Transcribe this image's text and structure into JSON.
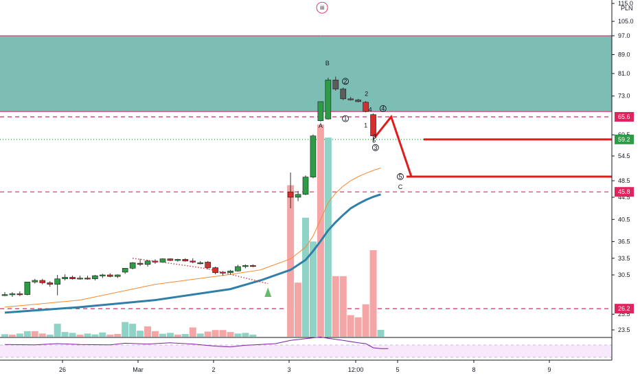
{
  "chart_data": {
    "type": "candlestick",
    "currency": "PLN",
    "y_ticks": [
      23.5,
      25.5,
      26.2,
      30.5,
      33.5,
      36.5,
      40.5,
      44.5,
      48.5,
      54.5,
      60.5,
      65.6,
      73.0,
      81.0,
      89.0,
      97.0,
      105.0,
      115.0
    ],
    "y_tick_labels": [
      "23.5",
      "25.5",
      "",
      "30.5",
      "33.5",
      "36.5",
      "40.5",
      "44.5",
      "48.5",
      "54.5",
      "60.5",
      "",
      "73.0",
      "81.0",
      "89.0",
      "97.0",
      "105.0",
      "115.0"
    ],
    "x_labels": [
      "26",
      "Mar",
      "2",
      "3",
      "12:00",
      "5",
      "8",
      "9"
    ],
    "zone": {
      "from": 67.5,
      "to": 97.0,
      "color": "#7cbdb4"
    },
    "levels": [
      {
        "value": 65.6,
        "label": "65.6",
        "color": "#e0245e",
        "style": "dashed"
      },
      {
        "value": 45.8,
        "label": "45.8",
        "color": "#e0245e",
        "style": "dashed"
      },
      {
        "value": 26.2,
        "label": "26.2",
        "color": "#e0245e",
        "style": "dashed"
      },
      {
        "value": 59.2,
        "label": "59.2",
        "color": "#2e9c46",
        "style": "dotted"
      }
    ],
    "projection_levels": [
      59.2,
      49.5
    ],
    "projection_path": [
      [
        44.9,
        65.6
      ],
      [
        45.3,
        49.5
      ]
    ],
    "candles": [
      {
        "t": 0,
        "o": 28.0,
        "h": 28.3,
        "l": 27.8,
        "c": 28.0
      },
      {
        "t": 1,
        "o": 28.0,
        "h": 28.3,
        "l": 27.7,
        "c": 28.1
      },
      {
        "t": 2,
        "o": 28.1,
        "h": 28.4,
        "l": 27.8,
        "c": 28.0
      },
      {
        "t": 3,
        "o": 28.0,
        "h": 29.6,
        "l": 27.9,
        "c": 29.6
      },
      {
        "t": 4,
        "o": 29.6,
        "h": 30.0,
        "l": 29.4,
        "c": 29.8
      },
      {
        "t": 5,
        "o": 29.8,
        "h": 30.0,
        "l": 29.3,
        "c": 29.5
      },
      {
        "t": 6,
        "o": 29.5,
        "h": 29.7,
        "l": 29.0,
        "c": 29.3
      },
      {
        "t": 7,
        "o": 29.3,
        "h": 30.5,
        "l": 27.9,
        "c": 30.0
      },
      {
        "t": 8,
        "o": 30.0,
        "h": 30.6,
        "l": 29.8,
        "c": 30.2
      },
      {
        "t": 9,
        "o": 30.2,
        "h": 30.4,
        "l": 29.9,
        "c": 30.0
      },
      {
        "t": 10,
        "o": 30.0,
        "h": 30.4,
        "l": 29.9,
        "c": 30.1
      },
      {
        "t": 11,
        "o": 30.1,
        "h": 30.4,
        "l": 29.9,
        "c": 30.0
      },
      {
        "t": 12,
        "o": 30.0,
        "h": 30.5,
        "l": 29.8,
        "c": 30.4
      },
      {
        "t": 13,
        "o": 30.4,
        "h": 30.7,
        "l": 30.1,
        "c": 30.5
      },
      {
        "t": 14,
        "o": 30.5,
        "h": 30.8,
        "l": 30.2,
        "c": 30.3
      },
      {
        "t": 15,
        "o": 30.3,
        "h": 30.6,
        "l": 30.1,
        "c": 30.5
      },
      {
        "t": 16,
        "o": 31.0,
        "h": 31.2,
        "l": 30.7,
        "c": 31.7
      },
      {
        "t": 17,
        "o": 31.7,
        "h": 32.8,
        "l": 31.5,
        "c": 32.7
      },
      {
        "t": 18,
        "o": 32.6,
        "h": 33.4,
        "l": 32.1,
        "c": 32.4
      },
      {
        "t": 19,
        "o": 32.4,
        "h": 33.2,
        "l": 32.0,
        "c": 33.0
      },
      {
        "t": 20,
        "o": 33.0,
        "h": 33.3,
        "l": 32.5,
        "c": 32.8
      },
      {
        "t": 21,
        "o": 32.8,
        "h": 33.5,
        "l": 32.7,
        "c": 33.4
      },
      {
        "t": 22,
        "o": 33.4,
        "h": 33.5,
        "l": 33.0,
        "c": 33.1
      },
      {
        "t": 23,
        "o": 33.1,
        "h": 33.4,
        "l": 32.9,
        "c": 33.3
      },
      {
        "t": 24,
        "o": 33.3,
        "h": 33.5,
        "l": 32.9,
        "c": 33.0
      },
      {
        "t": 25,
        "o": 33.0,
        "h": 33.5,
        "l": 32.6,
        "c": 32.9
      },
      {
        "t": 26,
        "o": 32.5,
        "h": 33.0,
        "l": 32.4,
        "c": 32.7
      },
      {
        "t": 27,
        "o": 32.8,
        "h": 33.0,
        "l": 31.5,
        "c": 31.8
      },
      {
        "t": 28,
        "o": 31.8,
        "h": 32.0,
        "l": 30.6,
        "c": 30.9
      },
      {
        "t": 29,
        "o": 31.0,
        "h": 31.2,
        "l": 30.4,
        "c": 30.9
      },
      {
        "t": 30,
        "o": 30.9,
        "h": 31.4,
        "l": 30.6,
        "c": 31.2
      },
      {
        "t": 31,
        "o": 31.2,
        "h": 32.3,
        "l": 31.1,
        "c": 32.0
      },
      {
        "t": 32,
        "o": 32.0,
        "h": 32.4,
        "l": 31.7,
        "c": 32.2
      },
      {
        "t": 33,
        "o": 32.2,
        "h": 32.4,
        "l": 31.9,
        "c": 32.1
      },
      {
        "t": 38,
        "o": 45.8,
        "h": 50.5,
        "l": 42.5,
        "c": 44.5
      },
      {
        "t": 39,
        "o": 44.5,
        "h": 46.0,
        "l": 43.8,
        "c": 45.2
      },
      {
        "t": 40,
        "o": 45.2,
        "h": 49.8,
        "l": 45.0,
        "c": 49.4
      },
      {
        "t": 41,
        "o": 49.4,
        "h": 60.6,
        "l": 49.1,
        "c": 60.2
      },
      {
        "t": 42,
        "o": 64.5,
        "h": 97.0,
        "l": 64.0,
        "c": 71.0
      },
      {
        "t": 43,
        "o": 65.0,
        "h": 79.5,
        "l": 64.8,
        "c": 78.7
      },
      {
        "t": 44,
        "o": 78.7,
        "h": 79.9,
        "l": 74.9,
        "c": 75.5
      },
      {
        "t": 45,
        "o": 75.5,
        "h": 76.0,
        "l": 71.5,
        "c": 72.0
      },
      {
        "t": 46,
        "o": 72.0,
        "h": 72.7,
        "l": 71.4,
        "c": 71.9
      },
      {
        "t": 47,
        "o": 71.6,
        "h": 72.0,
        "l": 70.8,
        "c": 71.0
      },
      {
        "t": 48,
        "o": 70.8,
        "h": 71.2,
        "l": 67.2,
        "c": 67.5
      },
      {
        "t": 49,
        "o": 66.4,
        "h": 66.8,
        "l": 58.5,
        "c": 60.2
      }
    ],
    "volume": [
      {
        "t": 0,
        "v": 1.2,
        "c": "g"
      },
      {
        "t": 1,
        "v": 1.0,
        "c": "r"
      },
      {
        "t": 2,
        "v": 1.5,
        "c": "g"
      },
      {
        "t": 3,
        "v": 2.6,
        "c": "g"
      },
      {
        "t": 4,
        "v": 2.6,
        "c": "r"
      },
      {
        "t": 5,
        "v": 1.5,
        "c": "r"
      },
      {
        "t": 6,
        "v": 1.0,
        "c": "g"
      },
      {
        "t": 7,
        "v": 6.0,
        "c": "g"
      },
      {
        "t": 8,
        "v": 2.2,
        "c": "g"
      },
      {
        "t": 9,
        "v": 1.8,
        "c": "g"
      },
      {
        "t": 10,
        "v": 1.0,
        "c": "r"
      },
      {
        "t": 11,
        "v": 1.5,
        "c": "g"
      },
      {
        "t": 12,
        "v": 1.1,
        "c": "g"
      },
      {
        "t": 13,
        "v": 2.0,
        "c": "g"
      },
      {
        "t": 14,
        "v": 1.0,
        "c": "r"
      },
      {
        "t": 15,
        "v": 1.3,
        "c": "r"
      },
      {
        "t": 16,
        "v": 6.8,
        "c": "g"
      },
      {
        "t": 17,
        "v": 6.0,
        "c": "g"
      },
      {
        "t": 18,
        "v": 2.8,
        "c": "g"
      },
      {
        "t": 19,
        "v": 4.8,
        "c": "r"
      },
      {
        "t": 20,
        "v": 2.6,
        "c": "r"
      },
      {
        "t": 21,
        "v": 1.4,
        "c": "g"
      },
      {
        "t": 22,
        "v": 1.8,
        "c": "g"
      },
      {
        "t": 23,
        "v": 1.0,
        "c": "r"
      },
      {
        "t": 24,
        "v": 1.3,
        "c": "g"
      },
      {
        "t": 25,
        "v": 4.3,
        "c": "r"
      },
      {
        "t": 26,
        "v": 1.5,
        "c": "g"
      },
      {
        "t": 27,
        "v": 2.4,
        "c": "r"
      },
      {
        "t": 28,
        "v": 3.1,
        "c": "r"
      },
      {
        "t": 29,
        "v": 3.1,
        "c": "r"
      },
      {
        "t": 30,
        "v": 2.2,
        "c": "r"
      },
      {
        "t": 31,
        "v": 1.5,
        "c": "g"
      },
      {
        "t": 32,
        "v": 1.8,
        "c": "g"
      },
      {
        "t": 33,
        "v": 1.0,
        "c": "g"
      },
      {
        "t": 38,
        "v": 70,
        "c": "r"
      },
      {
        "t": 39,
        "v": 25,
        "c": "r"
      },
      {
        "t": 40,
        "v": 55,
        "c": "g"
      },
      {
        "t": 41,
        "v": 44,
        "c": "g"
      },
      {
        "t": 42,
        "v": 98,
        "c": "r"
      },
      {
        "t": 43,
        "v": 92,
        "c": "g"
      },
      {
        "t": 44,
        "v": 28,
        "c": "r"
      },
      {
        "t": 45,
        "v": 28,
        "c": "r"
      },
      {
        "t": 46,
        "v": 10,
        "c": "r"
      },
      {
        "t": 47,
        "v": 9,
        "c": "r"
      },
      {
        "t": 48,
        "v": 15,
        "c": "r"
      },
      {
        "t": 49,
        "v": 40,
        "c": "r"
      },
      {
        "t": 50,
        "v": 3.2,
        "c": "g"
      }
    ],
    "ma_fast": [
      [
        0,
        26.4
      ],
      [
        10,
        27.3
      ],
      [
        20,
        29.3
      ],
      [
        30,
        30.6
      ],
      [
        34,
        31.4
      ],
      [
        38,
        33.4
      ],
      [
        40,
        35.5
      ],
      [
        41,
        37.5
      ],
      [
        42,
        40.5
      ],
      [
        43,
        43.5
      ],
      [
        44,
        45.5
      ],
      [
        45,
        47.2
      ],
      [
        46,
        48.5
      ],
      [
        47,
        49.5
      ],
      [
        48,
        50.3
      ],
      [
        49,
        51.0
      ],
      [
        50,
        51.6
      ]
    ],
    "ma_slow": [
      [
        0,
        25.7
      ],
      [
        10,
        26.4
      ],
      [
        20,
        27.3
      ],
      [
        30,
        28.7
      ],
      [
        34,
        29.8
      ],
      [
        38,
        31.4
      ],
      [
        40,
        33.2
      ],
      [
        41,
        34.8
      ],
      [
        42,
        36.6
      ],
      [
        43,
        38.5
      ],
      [
        44,
        40.0
      ],
      [
        45,
        41.3
      ],
      [
        46,
        42.5
      ],
      [
        47,
        43.3
      ],
      [
        48,
        44.0
      ],
      [
        49,
        44.6
      ],
      [
        50,
        45.2
      ]
    ],
    "red_dots": [
      [
        17,
        33.5
      ],
      [
        22,
        32.6
      ],
      [
        27,
        31.6
      ],
      [
        32,
        30.1
      ],
      [
        35,
        29.4
      ]
    ],
    "wave_labels": [
      {
        "text": "iii",
        "t": 42.2,
        "y": 111.5,
        "circled": true,
        "color": "#e0245e"
      },
      {
        "text": "B",
        "t": 42.9,
        "y": 84.5,
        "circled": false,
        "color": "#131722"
      },
      {
        "text": "A",
        "t": 42.0,
        "y": 62.5,
        "circled": false,
        "color": "#131722"
      },
      {
        "text": "2",
        "t": 45.3,
        "y": 77.5,
        "circled": true,
        "color": "#131722"
      },
      {
        "text": "1",
        "t": 45.3,
        "y": 64.5,
        "circled": true,
        "color": "#131722"
      },
      {
        "text": "2",
        "t": 48.1,
        "y": 73.0,
        "circled": false,
        "color": "#131722"
      },
      {
        "text": "4",
        "t": 48.6,
        "y": 67.4,
        "circled": false,
        "color": "#131722"
      },
      {
        "text": "4",
        "t": 50.3,
        "y": 67.8,
        "circled": true,
        "color": "#131722"
      },
      {
        "text": "1",
        "t": 48.0,
        "y": 62.6,
        "circled": false,
        "color": "#131722"
      },
      {
        "text": "5",
        "t": 49.1,
        "y": 58.3,
        "circled": false,
        "color": "#131722"
      },
      {
        "text": "3",
        "t": 49.2,
        "y": 59.5,
        "circled": false,
        "color": "#131722"
      },
      {
        "text": "3",
        "t": 49.3,
        "y": 56.3,
        "circled": true,
        "color": "#131722"
      },
      {
        "text": "5",
        "t": 52.6,
        "y": 49.0,
        "circled": true,
        "color": "#131722"
      },
      {
        "text": "C",
        "t": 52.6,
        "y": 46.5,
        "circled": false,
        "color": "#131722"
      }
    ],
    "rsi": [
      [
        0,
        48
      ],
      [
        4,
        47
      ],
      [
        7,
        50
      ],
      [
        10,
        48
      ],
      [
        14,
        47
      ],
      [
        16,
        51
      ],
      [
        19,
        49
      ],
      [
        22,
        52
      ],
      [
        25,
        49
      ],
      [
        28,
        44
      ],
      [
        30,
        42
      ],
      [
        32,
        46
      ],
      [
        34,
        48
      ],
      [
        36,
        50
      ],
      [
        38,
        58
      ],
      [
        40,
        62
      ],
      [
        42,
        66
      ],
      [
        43,
        63
      ],
      [
        45,
        58
      ],
      [
        47,
        52
      ],
      [
        48,
        50
      ],
      [
        49,
        40
      ],
      [
        50,
        38
      ],
      [
        51,
        38
      ]
    ]
  }
}
